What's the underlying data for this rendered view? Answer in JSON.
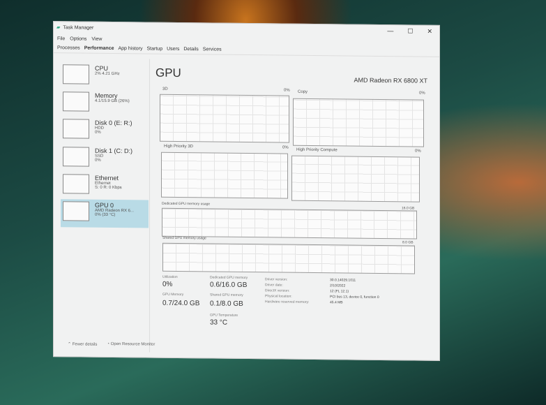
{
  "window": {
    "title": "Task Manager",
    "minimize": "—",
    "maximize": "☐",
    "close": "✕"
  },
  "menu": [
    "File",
    "Options",
    "View"
  ],
  "tabs": [
    "Processes",
    "Performance",
    "App history",
    "Startup",
    "Users",
    "Details",
    "Services"
  ],
  "sidebar": [
    {
      "name": "CPU",
      "l1": "2% 4.21 GHz",
      "l2": ""
    },
    {
      "name": "Memory",
      "l1": "4.1/15.9 GB (26%)",
      "l2": ""
    },
    {
      "name": "Disk 0 (E: R:)",
      "l1": "HDD",
      "l2": "0%"
    },
    {
      "name": "Disk 1 (C: D:)",
      "l1": "SSD",
      "l2": "0%"
    },
    {
      "name": "Ethernet",
      "l1": "Ethernet",
      "l2": "S: 0 R: 0 Kbps"
    },
    {
      "name": "GPU 0",
      "l1": "AMD Radeon RX 6...",
      "l2": "0% (33 °C)"
    }
  ],
  "main": {
    "title": "GPU",
    "gpu_name": "AMD Radeon RX 6800 XT",
    "graphs": [
      {
        "label": "3D",
        "value": "0%"
      },
      {
        "label": "Copy",
        "value": "0%"
      },
      {
        "label": "High Priority 3D",
        "value": "0%"
      },
      {
        "label": "High Priority Compute",
        "value": "0%"
      },
      {
        "label": "Dedicated GPU memory usage",
        "value": "16.0 GB"
      },
      {
        "label": "Shared GPU memory usage",
        "value": "8.0 GB"
      }
    ],
    "stats": {
      "utilization_label": "Utilization",
      "utilization": "0%",
      "gpu_memory_label": "GPU Memory",
      "gpu_memory": "0.7/24.0 GB",
      "dedicated_label": "Dedicated GPU memory",
      "dedicated": "0.6/16.0 GB",
      "shared_label": "Shared GPU memory",
      "shared": "0.1/8.0 GB",
      "temp_label": "GPU Temperature",
      "temp": "33 °C"
    },
    "info": [
      {
        "k": "Driver version:",
        "v": "30.0.14029.1011"
      },
      {
        "k": "Driver date:",
        "v": "2/10/2022"
      },
      {
        "k": "DirectX version:",
        "v": "12 (FL 12.1)"
      },
      {
        "k": "Physical location:",
        "v": "PCI bus 13, device 0, function 0"
      },
      {
        "k": "Hardware reserved memory:",
        "v": "45.4 MB"
      }
    ]
  },
  "footer": {
    "fewer": "Fewer details",
    "monitor": "Open Resource Monitor"
  }
}
